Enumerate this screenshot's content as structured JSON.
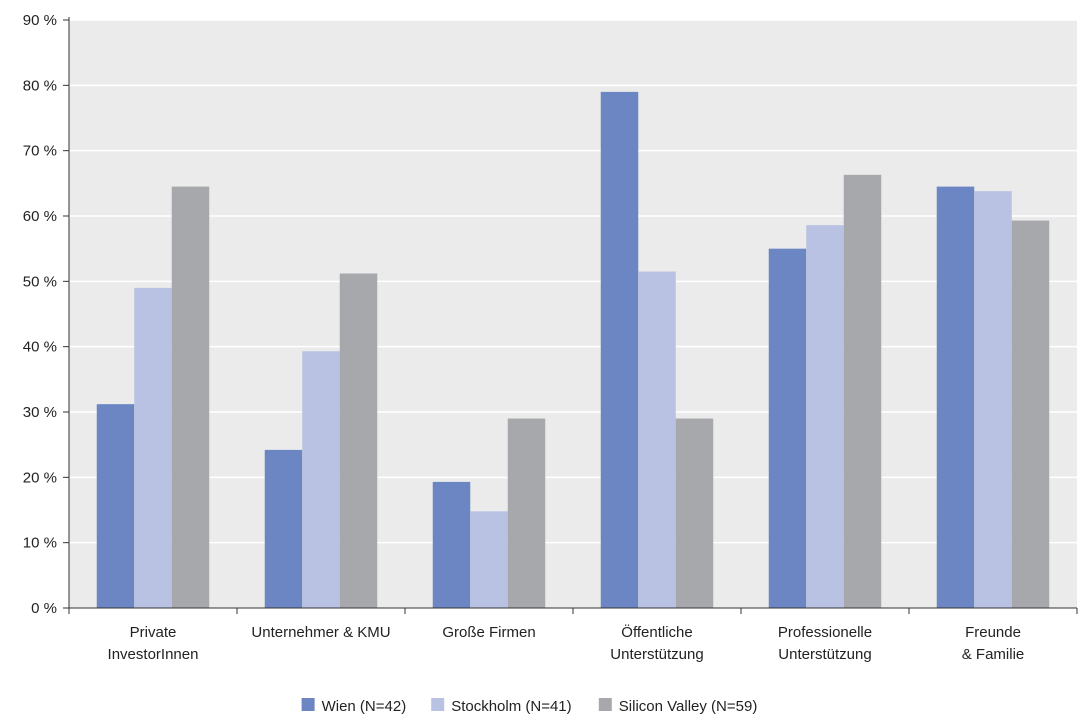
{
  "chart_data": {
    "type": "bar",
    "categories": [
      [
        "Private",
        "InvestorInnen"
      ],
      [
        "Unternehmer & KMU"
      ],
      [
        "Große Firmen"
      ],
      [
        "Öffentliche",
        "Unterstützung"
      ],
      [
        "Professionelle",
        "Unterstützung"
      ],
      [
        "Freunde",
        "& Familie"
      ]
    ],
    "series": [
      {
        "name": "Wien (N=42)",
        "color": "#6b86c3",
        "values": [
          31.2,
          24.2,
          19.3,
          79.0,
          55.0,
          64.5
        ]
      },
      {
        "name": "Stockholm (N=41)",
        "color": "#b9c2e2",
        "values": [
          49.0,
          39.3,
          14.8,
          51.5,
          58.6,
          63.8
        ]
      },
      {
        "name": "Silicon Valley (N=59)",
        "color": "#a7a8ac",
        "values": [
          64.5,
          51.2,
          29.0,
          29.0,
          66.3,
          59.3
        ]
      }
    ],
    "ylim": [
      0,
      90
    ],
    "yticks": [
      0,
      10,
      20,
      30,
      40,
      50,
      60,
      70,
      80,
      90
    ],
    "ytick_suffix": " %",
    "grid": true,
    "legend": "bottom-center",
    "plot_background": "#ebebeb",
    "title": "",
    "xlabel": "",
    "ylabel": ""
  }
}
